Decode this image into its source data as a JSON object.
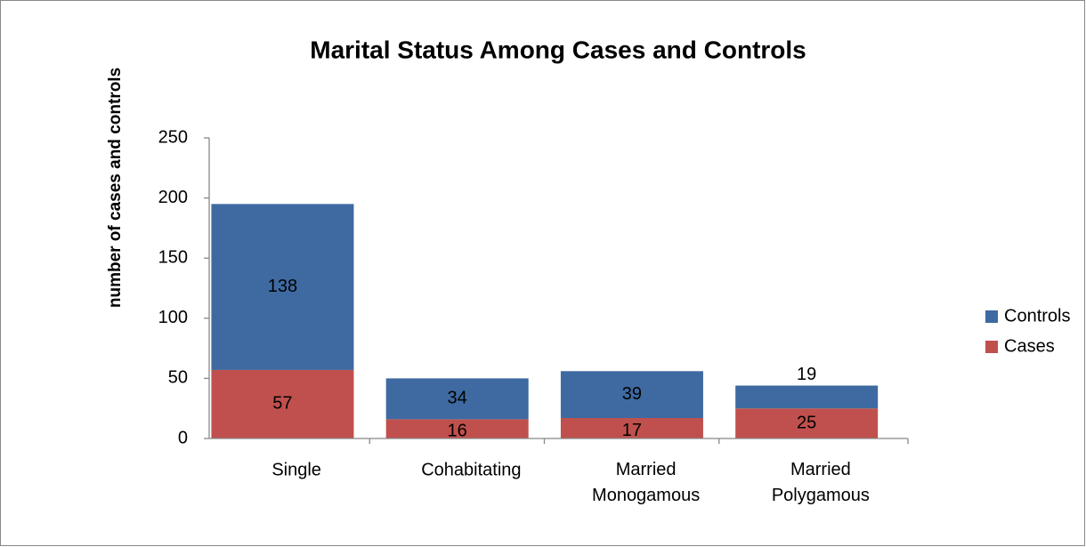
{
  "chart_data": {
    "type": "stacked_bar",
    "title": "Marital Status Among Cases and Controls",
    "y_label": "number of cases and controls",
    "categories": [
      "Single",
      "Cohabitating",
      "Married Monogamous",
      "Married Polygamous"
    ],
    "series": [
      {
        "name": "Cases",
        "color": "#c0504d",
        "values": [
          57,
          16,
          17,
          25
        ]
      },
      {
        "name": "Controls",
        "color": "#3e6aa1",
        "values": [
          138,
          34,
          39,
          19
        ]
      }
    ],
    "ylim": [
      0,
      250
    ],
    "yticks": [
      0,
      50,
      100,
      150,
      200,
      250
    ],
    "grid": false,
    "legend": "right"
  }
}
